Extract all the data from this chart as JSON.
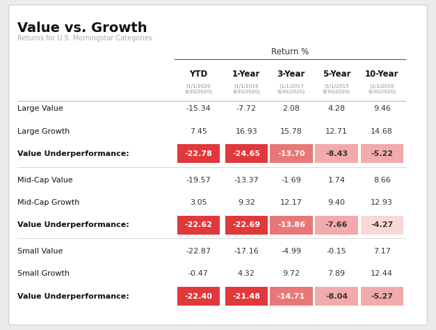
{
  "title": "Value vs. Growth",
  "subtitle": "Returns for U.S. Morningstar Categories",
  "return_label": "Return %",
  "col_headers": [
    "YTD",
    "1-Year",
    "3-Year",
    "5-Year",
    "10-Year"
  ],
  "col_subheaders": [
    "(1/1/2020\n6/30/2020)",
    "(1/1/2019\n6/30/2020)",
    "(1/1/2017\n6/30/2020)",
    "(1/1/2015\n6/30/2020)",
    "(1/1/2010\n6/30/2020)"
  ],
  "rows": [
    {
      "label": "Large Value",
      "bold": false,
      "values": [
        -15.34,
        -7.72,
        2.08,
        4.28,
        9.46
      ]
    },
    {
      "label": "Large Growth",
      "bold": false,
      "values": [
        7.45,
        16.93,
        15.78,
        12.71,
        14.68
      ]
    },
    {
      "label": "Value Underperformance:",
      "bold": true,
      "values": [
        -22.78,
        -24.65,
        -13.7,
        -8.43,
        -5.22
      ]
    },
    {
      "label": "Mid-Cap Value",
      "bold": false,
      "values": [
        -19.57,
        -13.37,
        -1.69,
        1.74,
        8.66
      ]
    },
    {
      "label": "Mid-Cap Growth",
      "bold": false,
      "values": [
        3.05,
        9.32,
        12.17,
        9.4,
        12.93
      ]
    },
    {
      "label": "Value Underperformance:",
      "bold": true,
      "values": [
        -22.62,
        -22.69,
        -13.86,
        -7.66,
        -4.27
      ]
    },
    {
      "label": "Small Value",
      "bold": false,
      "values": [
        -22.87,
        -17.16,
        -4.99,
        -0.15,
        7.17
      ]
    },
    {
      "label": "Small Growth",
      "bold": false,
      "values": [
        -0.47,
        4.32,
        9.72,
        7.89,
        12.44
      ]
    },
    {
      "label": "Value Underperformance:",
      "bold": true,
      "values": [
        -22.4,
        -21.48,
        -14.71,
        -8.04,
        -5.27
      ]
    }
  ],
  "group_separators_after": [
    2,
    5
  ],
  "bg_color": "#ebebeb",
  "card_color": "#ffffff",
  "highlight_colors": {
    "strong": "#e0393c",
    "medium": "#e87878",
    "light": "#f2aaaa",
    "vlight": "#fad8d8"
  },
  "highlight_thresholds": [
    -20,
    -10,
    -5
  ],
  "text_on_dark": "#ffffff",
  "text_on_light": "#333333"
}
